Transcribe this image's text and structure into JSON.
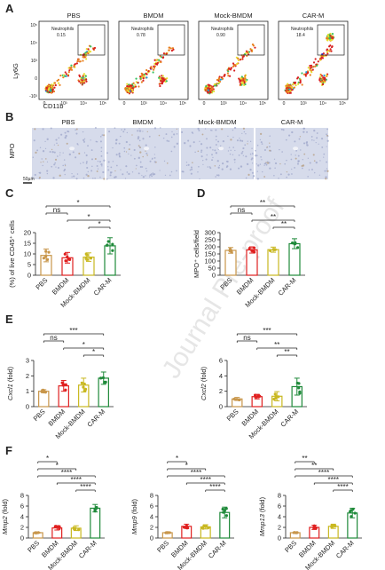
{
  "groups": [
    "PBS",
    "BMDM",
    "Mock-BMDM",
    "CAR-M"
  ],
  "colors": {
    "PBS": "#c8964a",
    "BMDM": "#e02020",
    "Mock-BMDM": "#c9b820",
    "CAR-M": "#1f8a3a"
  },
  "panels": {
    "A": {
      "letter": "A",
      "ylabel": "Ly6G",
      "xlabel": "CD11b",
      "gate_label": "Neutrophils",
      "titles": [
        "PBS",
        "BMDM",
        "Mock-BMDM",
        "CAR-M"
      ],
      "gate_values": [
        "0.15",
        "0.78",
        "0.90",
        "18.4"
      ],
      "y_ticks": [
        "10⁵",
        "10⁴",
        "10³",
        "0",
        "-10³"
      ],
      "x_ticks": [
        "0",
        "10³",
        "10⁴",
        "10⁵"
      ]
    },
    "B": {
      "letter": "B",
      "ylabel": "MPO",
      "titles": [
        "PBS",
        "BMDM",
        "Mock-BMDM",
        "CAR-M"
      ],
      "scale_bar": "50µm"
    }
  },
  "watermark": "Journal Pre-proof",
  "chart_data": [
    {
      "panel": "C",
      "type": "bar",
      "categories": [
        "PBS",
        "BMDM",
        "Mock-BMDM",
        "CAR-M"
      ],
      "values": [
        9.3,
        8.2,
        8.5,
        13.8
      ],
      "errors": [
        3.0,
        2.5,
        2.0,
        3.8
      ],
      "ylabel": "(%) of live CD45⁺ cells",
      "ylim": [
        0,
        20
      ],
      "yticks": [
        0,
        5,
        10,
        15,
        20
      ],
      "significance": [
        {
          "from": 0,
          "to": 3,
          "label": "*"
        },
        {
          "from": 0,
          "to": 1,
          "label": "ns"
        },
        {
          "from": 1,
          "to": 3,
          "label": "*"
        },
        {
          "from": 2,
          "to": 3,
          "label": "*"
        }
      ]
    },
    {
      "panel": "D",
      "type": "bar",
      "categories": [
        "PBS",
        "BMDM",
        "Mock-BMDM",
        "CAR-M"
      ],
      "values": [
        175,
        178,
        180,
        222
      ],
      "errors": [
        20,
        22,
        18,
        35
      ],
      "ylabel": "MPO⁺ cells/field",
      "ylim": [
        0,
        300
      ],
      "yticks": [
        0,
        50,
        100,
        150,
        200,
        250,
        300
      ],
      "significance": [
        {
          "from": 0,
          "to": 3,
          "label": "**"
        },
        {
          "from": 0,
          "to": 1,
          "label": "ns"
        },
        {
          "from": 1,
          "to": 3,
          "label": "**"
        },
        {
          "from": 2,
          "to": 3,
          "label": "**"
        }
      ]
    },
    {
      "panel": "E",
      "type": "bar",
      "categories": [
        "PBS",
        "BMDM",
        "Mock-BMDM",
        "CAR-M"
      ],
      "values": [
        1.0,
        1.35,
        1.4,
        1.85
      ],
      "errors": [
        0.1,
        0.35,
        0.45,
        0.4
      ],
      "ylabel": "Cxcl1 (fold)",
      "ylim": [
        0,
        3
      ],
      "yticks": [
        0,
        1,
        2,
        3
      ],
      "significance": [
        {
          "from": 0,
          "to": 3,
          "label": "***"
        },
        {
          "from": 0,
          "to": 1,
          "label": "ns"
        },
        {
          "from": 1,
          "to": 3,
          "label": "*"
        },
        {
          "from": 2,
          "to": 3,
          "label": "*"
        }
      ]
    },
    {
      "panel": "E2",
      "type": "bar",
      "categories": [
        "PBS",
        "BMDM",
        "Mock-BMDM",
        "CAR-M"
      ],
      "values": [
        1.0,
        1.3,
        1.35,
        2.6
      ],
      "errors": [
        0.2,
        0.3,
        0.6,
        1.1
      ],
      "ylabel": "Cxcl2 (fold)",
      "ylim": [
        0,
        6
      ],
      "yticks": [
        0,
        2,
        4,
        6
      ],
      "significance": [
        {
          "from": 0,
          "to": 3,
          "label": "***"
        },
        {
          "from": 0,
          "to": 1,
          "label": "ns"
        },
        {
          "from": 1,
          "to": 3,
          "label": "**"
        },
        {
          "from": 2,
          "to": 3,
          "label": "**"
        }
      ]
    },
    {
      "panel": "F",
      "type": "bar",
      "categories": [
        "PBS",
        "BMDM",
        "Mock-BMDM",
        "CAR-M"
      ],
      "values": [
        1.0,
        1.9,
        1.85,
        5.6
      ],
      "errors": [
        0.05,
        0.4,
        0.45,
        0.7
      ],
      "ylabel": "Mmp2 (fold)",
      "ylim": [
        0,
        8
      ],
      "yticks": [
        0,
        2,
        4,
        6,
        8
      ],
      "significance": [
        {
          "from": 0,
          "to": 1,
          "label": "*"
        },
        {
          "from": 0,
          "to": 2,
          "label": "*"
        },
        {
          "from": 0,
          "to": 3,
          "label": "****"
        },
        {
          "from": 1,
          "to": 3,
          "label": "****"
        },
        {
          "from": 2,
          "to": 3,
          "label": "****"
        }
      ]
    },
    {
      "panel": "F2",
      "type": "bar",
      "categories": [
        "PBS",
        "BMDM",
        "Mock-BMDM",
        "CAR-M"
      ],
      "values": [
        1.0,
        2.2,
        2.1,
        4.8
      ],
      "errors": [
        0.05,
        0.4,
        0.4,
        1.0
      ],
      "ylabel": "Mmp9 (fold)",
      "ylim": [
        0,
        8
      ],
      "yticks": [
        0,
        2,
        4,
        6,
        8
      ],
      "significance": [
        {
          "from": 0,
          "to": 1,
          "label": "*"
        },
        {
          "from": 0,
          "to": 2,
          "label": "*"
        },
        {
          "from": 0,
          "to": 3,
          "label": "****"
        },
        {
          "from": 1,
          "to": 3,
          "label": "****"
        },
        {
          "from": 2,
          "to": 3,
          "label": "****"
        }
      ]
    },
    {
      "panel": "F3",
      "type": "bar",
      "categories": [
        "PBS",
        "BMDM",
        "Mock-BMDM",
        "CAR-M"
      ],
      "values": [
        1.0,
        2.0,
        2.2,
        4.7
      ],
      "errors": [
        0.05,
        0.4,
        0.4,
        0.9
      ],
      "ylabel": "Mmp13 (fold)",
      "ylim": [
        0,
        8
      ],
      "yticks": [
        0,
        2,
        4,
        6,
        8
      ],
      "significance": [
        {
          "from": 0,
          "to": 1,
          "label": "**"
        },
        {
          "from": 0,
          "to": 2,
          "label": "**"
        },
        {
          "from": 0,
          "to": 3,
          "label": "****"
        },
        {
          "from": 1,
          "to": 3,
          "label": "****"
        },
        {
          "from": 2,
          "to": 3,
          "label": "****"
        }
      ]
    }
  ]
}
